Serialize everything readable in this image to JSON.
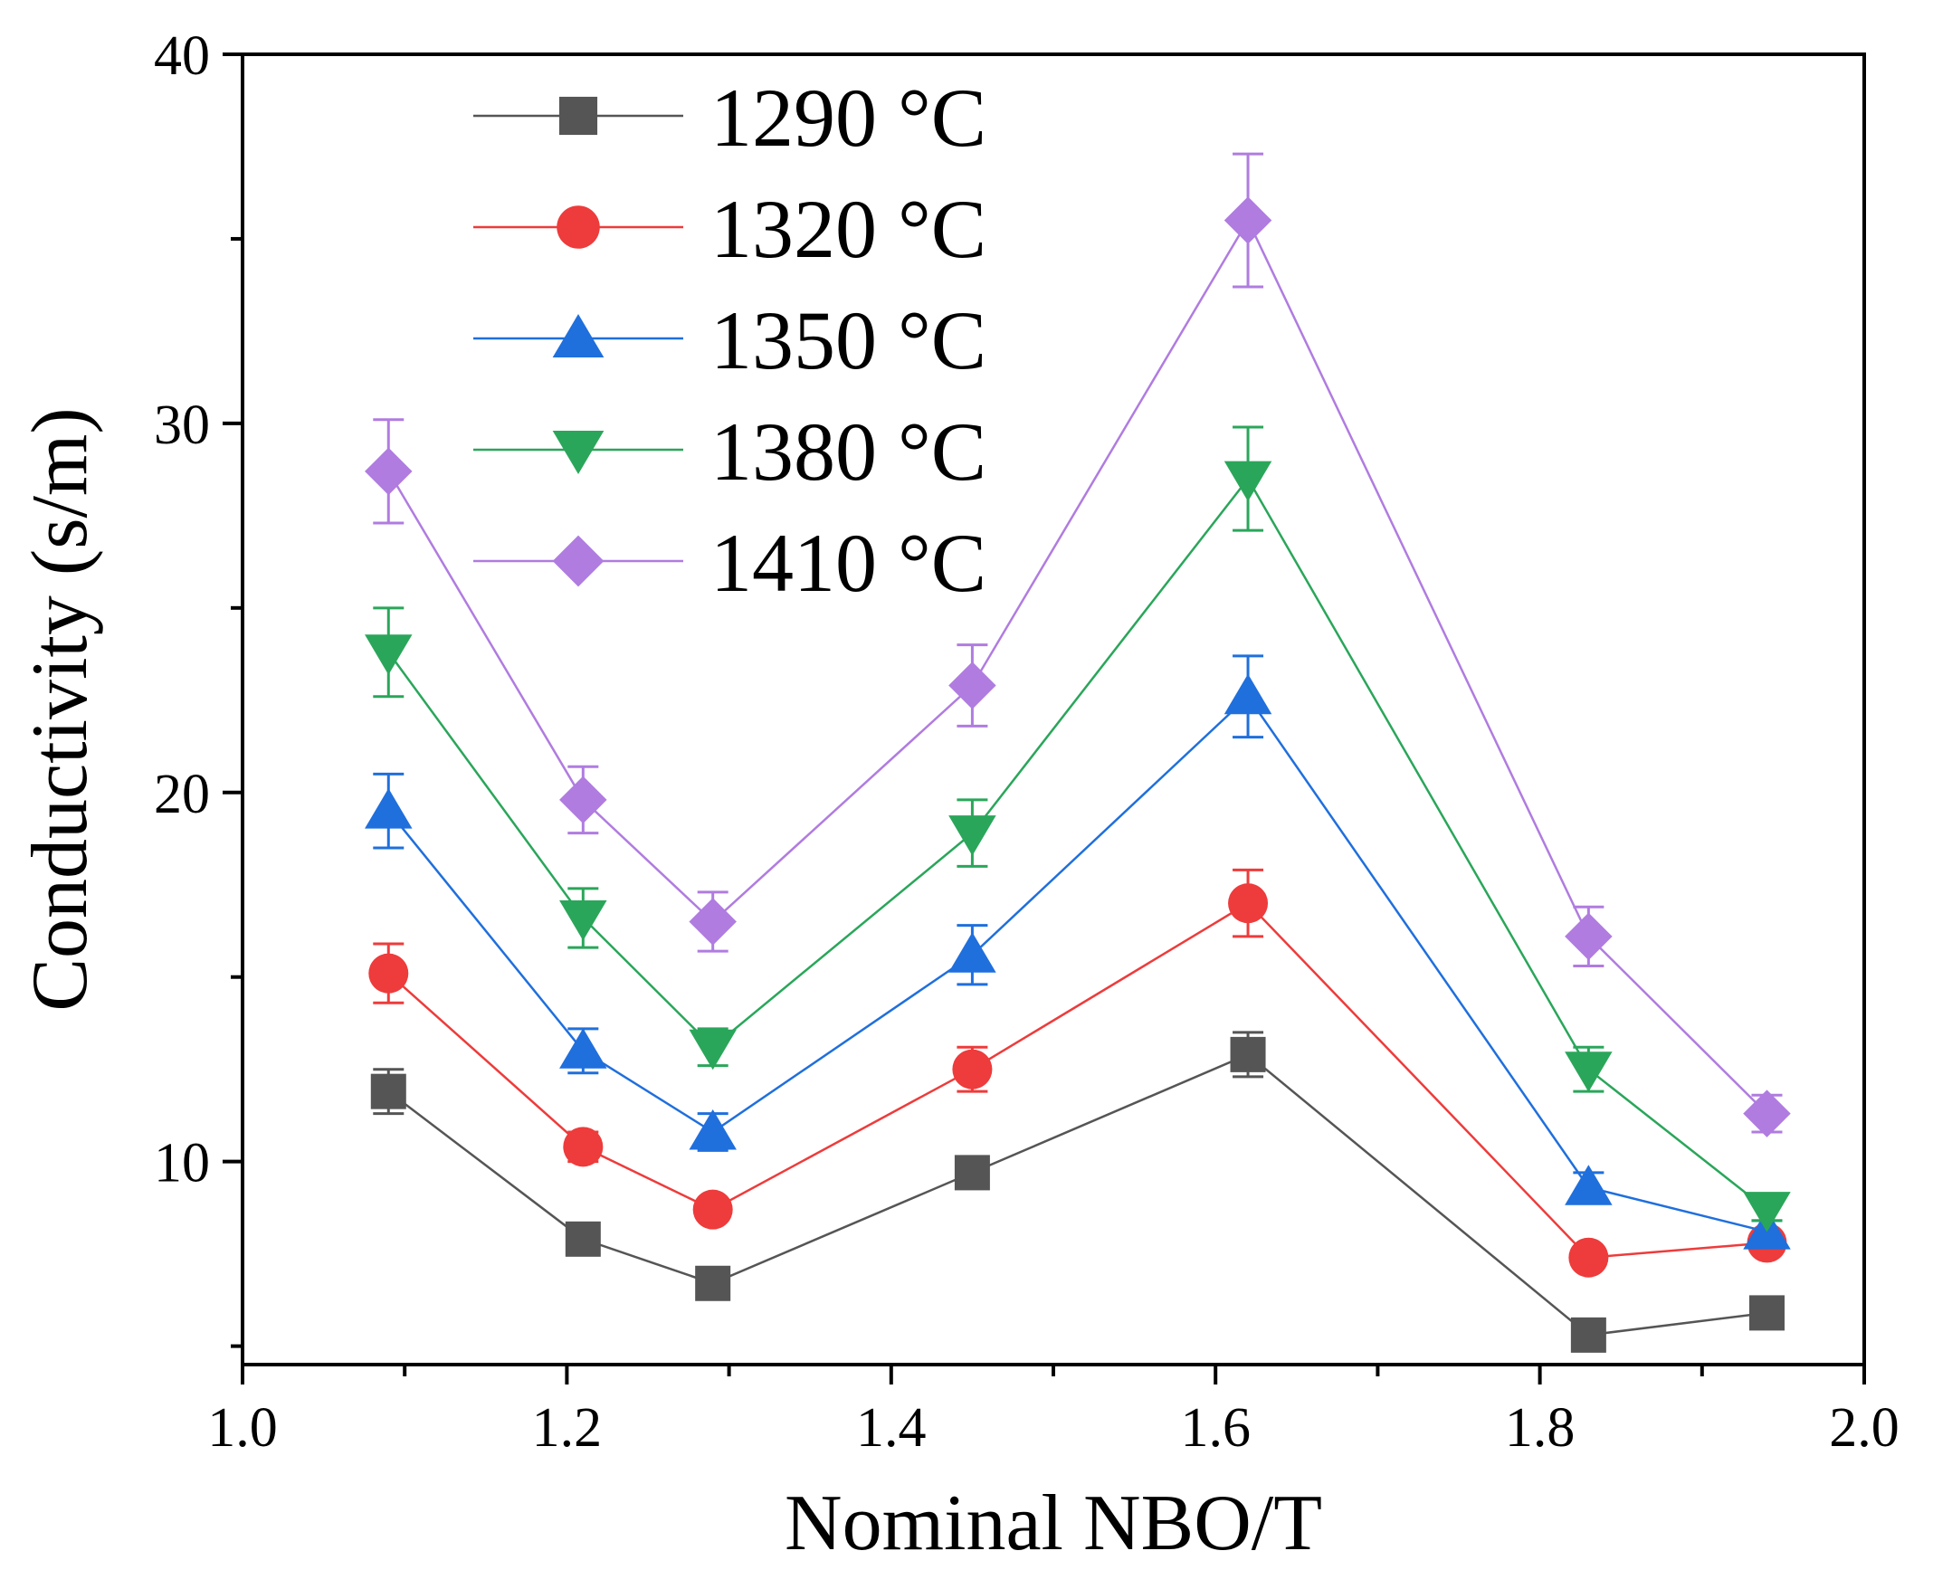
{
  "chart_data": {
    "type": "line",
    "title": "",
    "xlabel": "Nominal NBO/T",
    "ylabel": "Conductivity (s/m)",
    "xlim": [
      1.0,
      2.0
    ],
    "ylim": [
      4.5,
      40
    ],
    "xticks": [
      1.0,
      1.2,
      1.4,
      1.6,
      1.8,
      2.0
    ],
    "xtick_labels": [
      "1.0",
      "1.2",
      "1.4",
      "1.6",
      "1.8",
      "2.0"
    ],
    "yticks": [
      10,
      20,
      30,
      40
    ],
    "ytick_labels": [
      "10",
      "20",
      "30",
      "40"
    ],
    "legend_position": "top-left",
    "x": [
      1.09,
      1.21,
      1.29,
      1.45,
      1.62,
      1.83,
      1.94
    ],
    "series": [
      {
        "name": "1290 °C",
        "color": "#555555",
        "marker": "square",
        "values": [
          11.9,
          7.9,
          6.7,
          9.7,
          12.9,
          5.3,
          5.9
        ],
        "errors": [
          0.6,
          0.3,
          0.3,
          0.4,
          0.6,
          0.3,
          0.3
        ]
      },
      {
        "name": "1320 °C",
        "color": "#ee3b3b",
        "marker": "circle",
        "values": [
          15.1,
          10.4,
          8.7,
          12.5,
          17.0,
          7.4,
          7.8
        ],
        "errors": [
          0.8,
          0.4,
          0.3,
          0.6,
          0.9,
          0.3,
          0.3
        ]
      },
      {
        "name": "1350 °C",
        "color": "#1f6fdd",
        "marker": "triangle-up",
        "values": [
          19.5,
          13.0,
          10.8,
          15.6,
          22.6,
          9.3,
          8.1
        ],
        "errors": [
          1.0,
          0.6,
          0.5,
          0.8,
          1.1,
          0.4,
          0.3
        ]
      },
      {
        "name": "1380 °C",
        "color": "#2aa65a",
        "marker": "triangle-down",
        "values": [
          23.8,
          16.6,
          13.1,
          18.9,
          28.5,
          12.5,
          8.7
        ],
        "errors": [
          1.2,
          0.8,
          0.5,
          0.9,
          1.4,
          0.6,
          0.3
        ]
      },
      {
        "name": "1410 °C",
        "color": "#b07ce0",
        "marker": "diamond",
        "values": [
          28.7,
          19.8,
          16.5,
          22.9,
          35.5,
          16.1,
          11.3
        ],
        "errors": [
          1.4,
          0.9,
          0.8,
          1.1,
          1.8,
          0.8,
          0.5
        ]
      }
    ]
  }
}
